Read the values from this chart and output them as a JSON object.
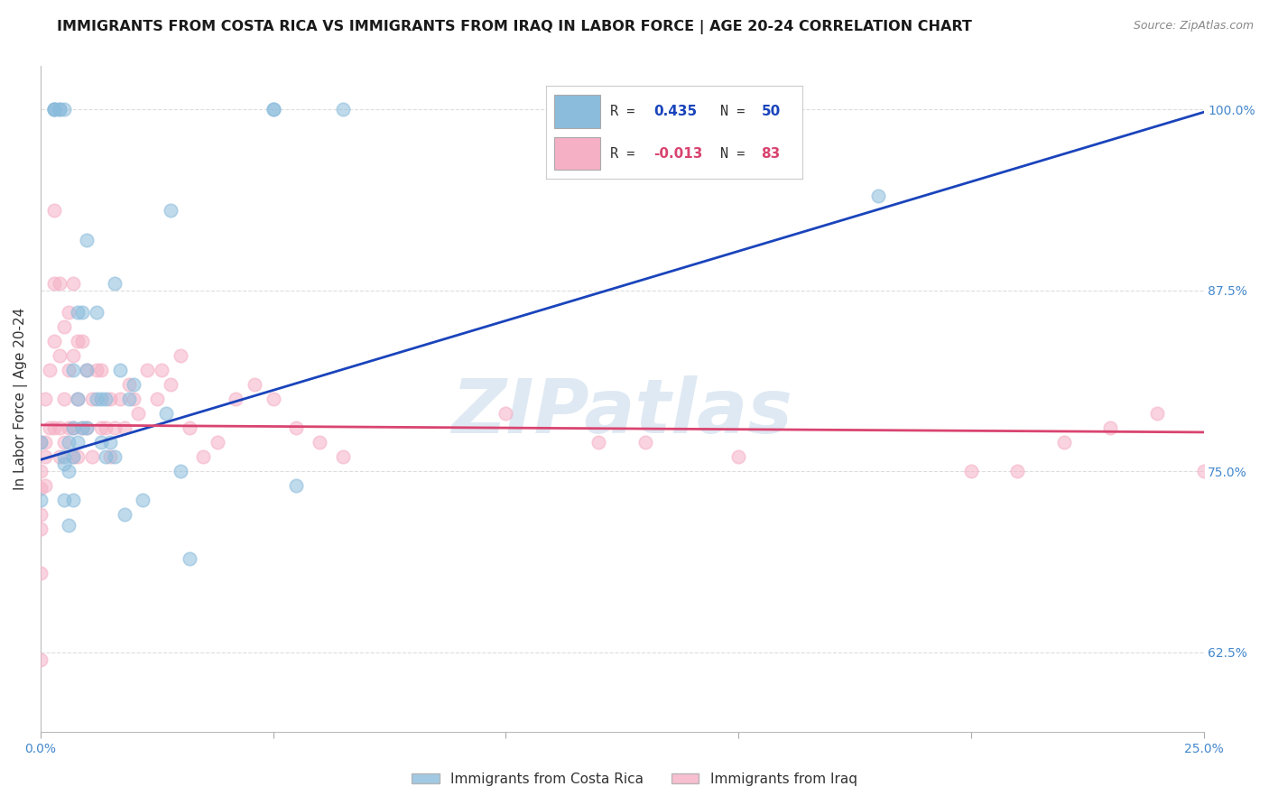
{
  "title": "IMMIGRANTS FROM COSTA RICA VS IMMIGRANTS FROM IRAQ IN LABOR FORCE | AGE 20-24 CORRELATION CHART",
  "source": "Source: ZipAtlas.com",
  "ylabel": "In Labor Force | Age 20-24",
  "xlim": [
    0.0,
    0.25
  ],
  "ylim": [
    0.57,
    1.03
  ],
  "yticks": [
    0.625,
    0.75,
    0.875,
    1.0
  ],
  "ytick_labels": [
    "62.5%",
    "75.0%",
    "87.5%",
    "100.0%"
  ],
  "xticks": [
    0.0,
    0.05,
    0.1,
    0.15,
    0.2,
    0.25
  ],
  "xtick_labels": [
    "0.0%",
    "",
    "",
    "",
    "",
    "25.0%"
  ],
  "blue_color": "#8bbcdc",
  "pink_color": "#f5b0c5",
  "blue_line_color": "#1a44bb",
  "pink_line_color": "#d94470",
  "blue_line_x": [
    0.0,
    0.25
  ],
  "blue_line_y": [
    0.758,
    0.998
  ],
  "pink_line_x": [
    0.0,
    0.25
  ],
  "pink_line_y": [
    0.782,
    0.777
  ],
  "legend_blue_label": "R =  0.435   N = 50",
  "legend_pink_label": "R = -0.013   N = 83",
  "blue_scatter_x": [
    0.0,
    0.0,
    0.003,
    0.003,
    0.003,
    0.004,
    0.004,
    0.005,
    0.005,
    0.005,
    0.005,
    0.006,
    0.006,
    0.006,
    0.007,
    0.007,
    0.007,
    0.007,
    0.008,
    0.008,
    0.008,
    0.009,
    0.009,
    0.01,
    0.01,
    0.01,
    0.012,
    0.012,
    0.013,
    0.013,
    0.014,
    0.014,
    0.015,
    0.016,
    0.016,
    0.017,
    0.018,
    0.019,
    0.02,
    0.022,
    0.027,
    0.028,
    0.03,
    0.032,
    0.05,
    0.05,
    0.055,
    0.065,
    0.18
  ],
  "blue_scatter_y": [
    0.77,
    0.73,
    1.0,
    1.0,
    1.0,
    1.0,
    1.0,
    1.0,
    0.76,
    0.755,
    0.73,
    0.77,
    0.75,
    0.713,
    0.82,
    0.78,
    0.76,
    0.73,
    0.86,
    0.8,
    0.77,
    0.86,
    0.78,
    0.91,
    0.82,
    0.78,
    0.86,
    0.8,
    0.8,
    0.77,
    0.8,
    0.76,
    0.77,
    0.88,
    0.76,
    0.82,
    0.72,
    0.8,
    0.81,
    0.73,
    0.79,
    0.93,
    0.75,
    0.69,
    1.0,
    1.0,
    0.74,
    1.0,
    0.94
  ],
  "pink_scatter_x": [
    0.0,
    0.0,
    0.0,
    0.0,
    0.0,
    0.0,
    0.0,
    0.001,
    0.001,
    0.001,
    0.001,
    0.002,
    0.002,
    0.003,
    0.003,
    0.003,
    0.003,
    0.004,
    0.004,
    0.004,
    0.004,
    0.005,
    0.005,
    0.005,
    0.006,
    0.006,
    0.006,
    0.007,
    0.007,
    0.007,
    0.007,
    0.008,
    0.008,
    0.008,
    0.009,
    0.009,
    0.01,
    0.01,
    0.011,
    0.011,
    0.012,
    0.013,
    0.013,
    0.014,
    0.015,
    0.015,
    0.016,
    0.017,
    0.018,
    0.019,
    0.02,
    0.021,
    0.023,
    0.025,
    0.026,
    0.028,
    0.03,
    0.032,
    0.035,
    0.038,
    0.042,
    0.046,
    0.05,
    0.055,
    0.06,
    0.065,
    0.1,
    0.12,
    0.13,
    0.15,
    0.2,
    0.21,
    0.22,
    0.23,
    0.24,
    0.25
  ],
  "pink_scatter_y": [
    0.77,
    0.75,
    0.738,
    0.72,
    0.71,
    0.68,
    0.62,
    0.8,
    0.77,
    0.76,
    0.74,
    0.82,
    0.78,
    0.93,
    0.88,
    0.84,
    0.78,
    0.88,
    0.83,
    0.78,
    0.76,
    0.85,
    0.8,
    0.77,
    0.86,
    0.82,
    0.78,
    0.88,
    0.83,
    0.78,
    0.76,
    0.84,
    0.8,
    0.76,
    0.84,
    0.78,
    0.82,
    0.78,
    0.8,
    0.76,
    0.82,
    0.82,
    0.78,
    0.78,
    0.8,
    0.76,
    0.78,
    0.8,
    0.78,
    0.81,
    0.8,
    0.79,
    0.82,
    0.8,
    0.82,
    0.81,
    0.83,
    0.78,
    0.76,
    0.77,
    0.8,
    0.81,
    0.8,
    0.78,
    0.77,
    0.76,
    0.79,
    0.77,
    0.77,
    0.76,
    0.75,
    0.75,
    0.77,
    0.78,
    0.79,
    0.75
  ],
  "background_color": "#ffffff",
  "grid_color": "#dddddd",
  "watermark": "ZIPatlas",
  "watermark_color": "#c5d8ea",
  "title_fontsize": 11.5,
  "axis_label_fontsize": 11,
  "tick_fontsize": 10,
  "legend_fontsize": 11
}
